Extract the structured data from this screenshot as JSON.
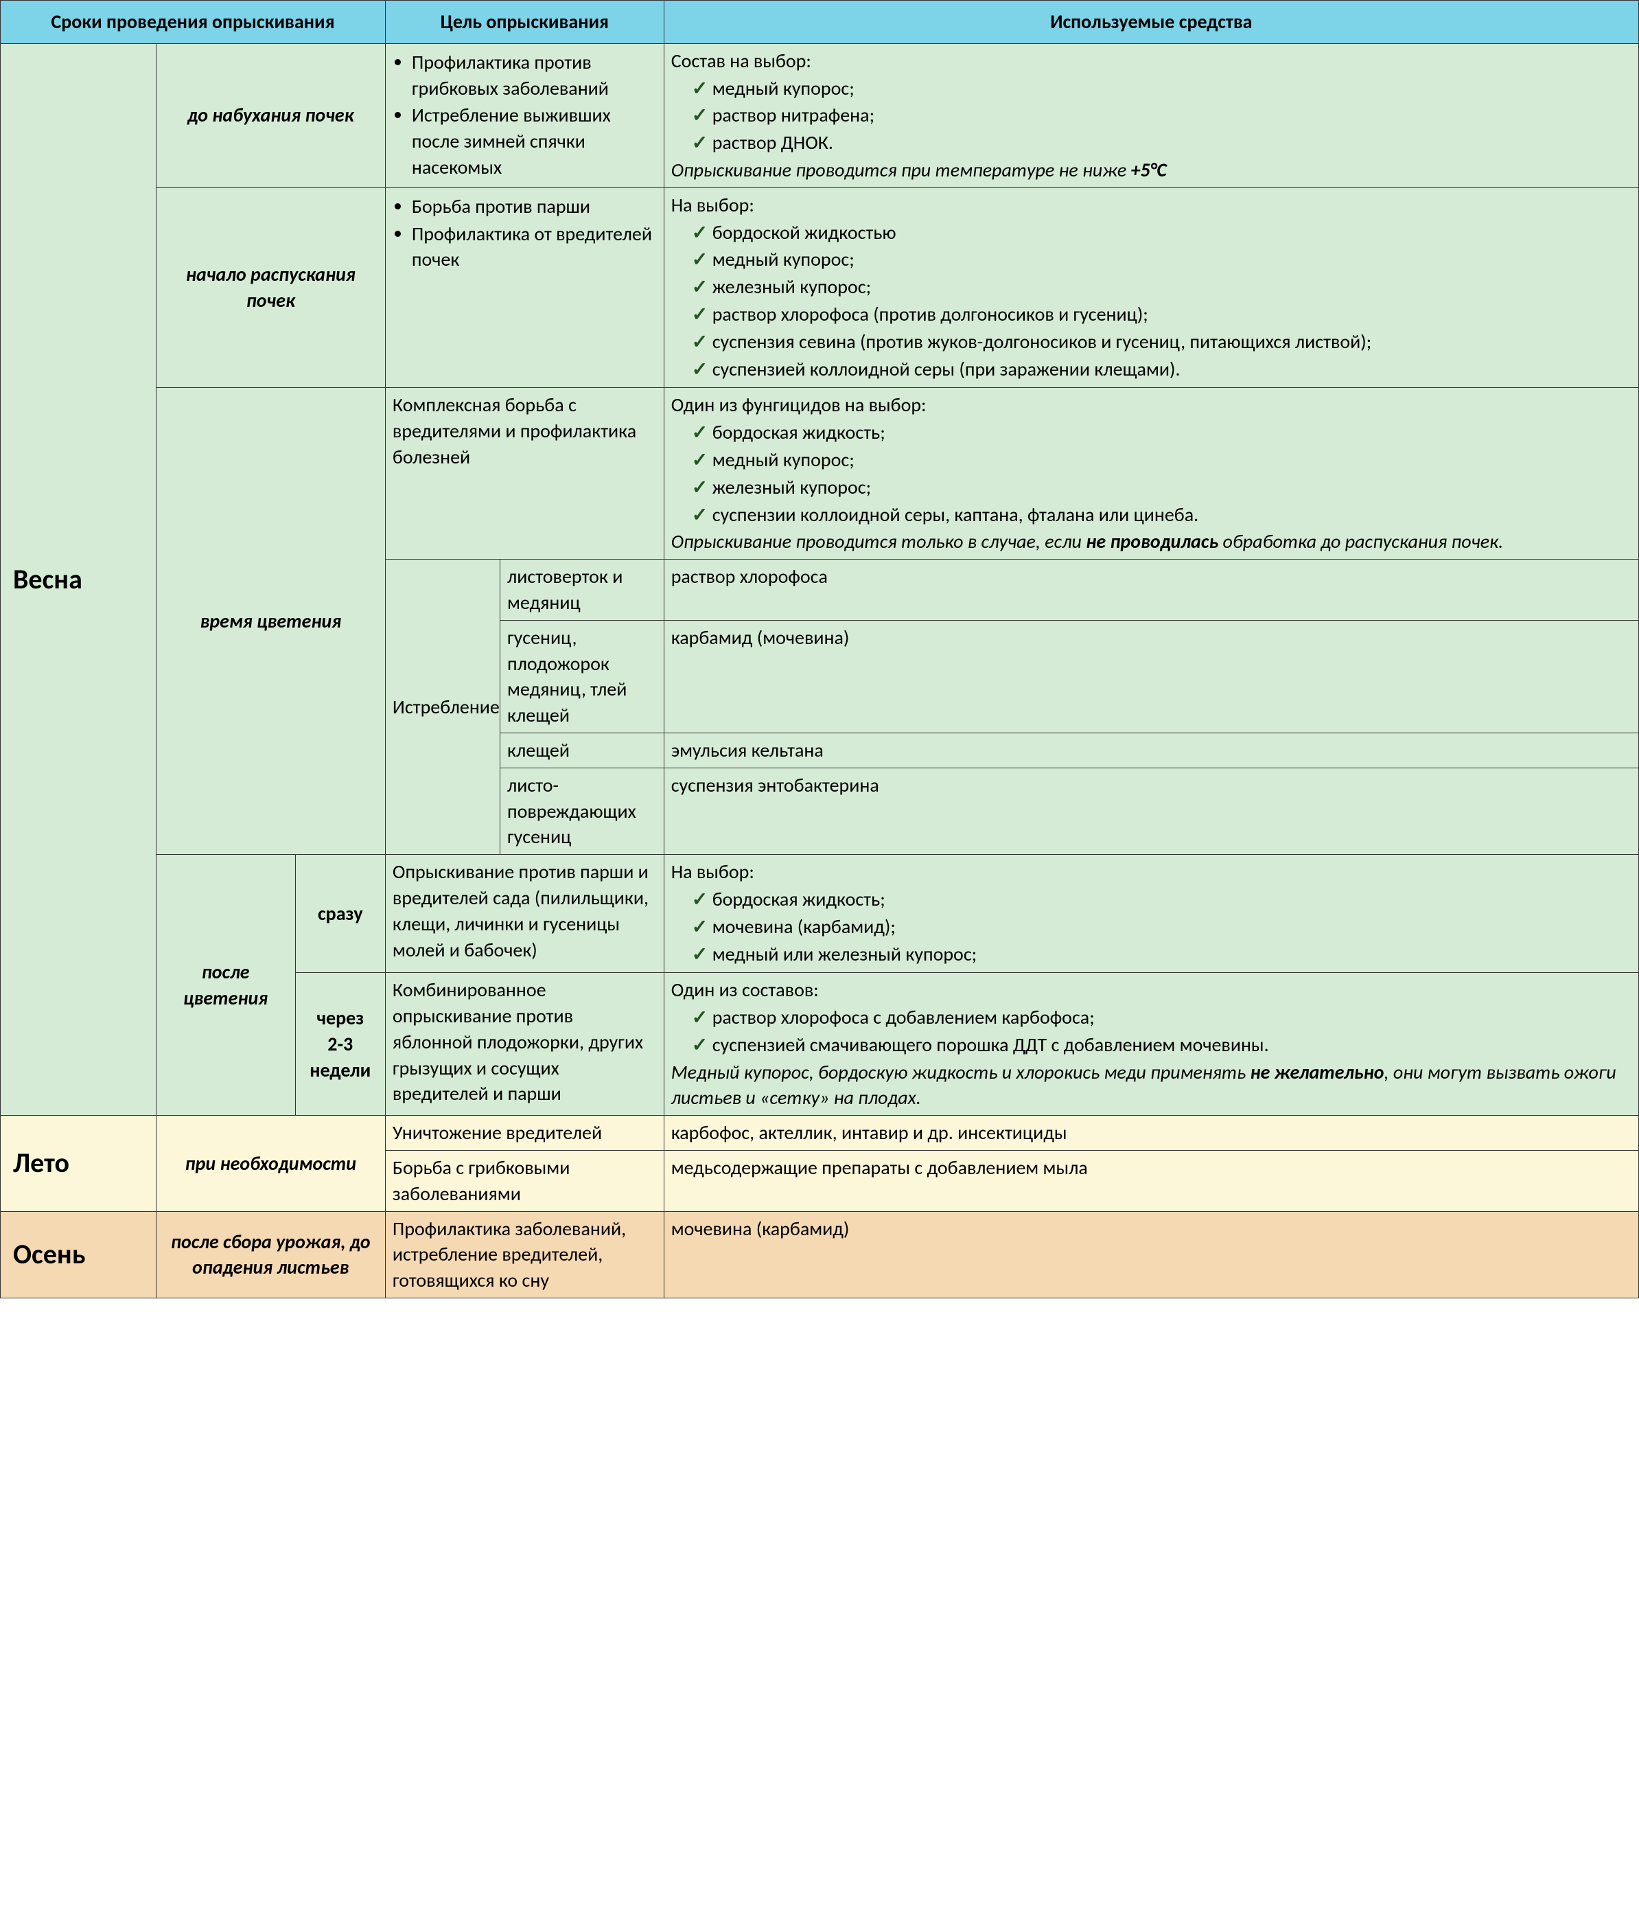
{
  "header": {
    "col_time": "Сроки проведения опрыскивания",
    "col_goal": "Цель опрыскивания",
    "col_means": "Используемые средства"
  },
  "seasons": {
    "vesna": "Весна",
    "leto": "Лето",
    "osen": "Осень"
  },
  "vesna": {
    "r1": {
      "phase": "до набухания почек",
      "goal_b1": "Профилактика против грибковых заболеваний",
      "goal_b2": "Истребление выживших после зимней спячки насекомых",
      "means_intro": "Состав на выбор:",
      "means_c1": "медный купорос;",
      "means_c2": "раствор нитрафена;",
      "means_c3": "раствор ДНОК.",
      "means_note_a": "Опрыскивание проводится при температуре не ниже ",
      "means_note_b": "+5°С"
    },
    "r2": {
      "phase": "начало распускания почек",
      "goal_b1": "Борьба против парши",
      "goal_b2": "Профилактика от вредителей почек",
      "means_intro": "На выбор:",
      "c1": "бордоской жидкостью",
      "c2": "медный купорос;",
      "c3": "железный купорос;",
      "c4": "раствор хлорофоса (против долгоносиков и гусениц);",
      "c5": "суспензия севина (против жуков-долгоносиков и гусениц, питающихся листвой);",
      "c6": "суспензией коллоидной серы (при заражении клещами)."
    },
    "r3": {
      "phase": "время цветения",
      "goal_a": "Комплексная борьба с вредителями и профилактика болезней",
      "means_intro": "Один из фунгицидов на выбор:",
      "c1": "бордоская жидкость;",
      "c2": "медный купорос;",
      "c3": "железный купорос;",
      "c4": "суспензии коллоидной серы, каптана, фталана или цинеба.",
      "note_a": "Опрыскивание проводится только в случае, если ",
      "note_b": "не проводилась",
      "note_c": " обработка до распускания почек.",
      "istreb_label": "Истребление",
      "sub1_t": "листоверток и медяниц",
      "sub1_m": "раствор хлорофоса",
      "sub2_t": "гусениц, плодожорок медяниц, тлей клещей",
      "sub2_m": "карбамид (мочевина)",
      "sub3_t": "клещей",
      "sub3_m": "эмульсия кельтана",
      "sub4_t": "листо-повреждающих гусениц",
      "sub4_m": "суспензия энтобактерина"
    },
    "r4": {
      "phase": "после цветения",
      "sub_a": "сразу",
      "sub_b_1": "через",
      "sub_b_2": "2-3",
      "sub_b_3": "недели",
      "goal_a": "Опрыскивание против парши и вредителей сада (пилильщики, клещи, личинки и гусеницы молей и бабочек)",
      "means_a_intro": "На выбор:",
      "a_c1": "бордоская жидкость;",
      "a_c2": "мочевина (карбамид);",
      "a_c3": "медный или железный купорос;",
      "goal_b": "Комбинированное опрыскивание против яблонной плодожорки, других грызущих и сосущих вредителей и парши",
      "means_b_intro": "Один из составов:",
      "b_c1": "раствор хлорофоса с добавлением карбофоса;",
      "b_c2": "суспензией смачивающего порошка ДДТ с добавлением мочевины.",
      "b_note_a": "Медный купорос, бордоскую жидкость и хлорокись меди применять ",
      "b_note_b": "не желательно",
      "b_note_c": ", они могут вызвать ожоги листьев и «сетку» на плодах."
    }
  },
  "leto": {
    "phase": "при необходимости",
    "g1": "Уничтожение вредителей",
    "m1": "карбофос, актеллик, интавир и др. инсектициды",
    "g2": "Борьба с грибковыми заболеваниями",
    "m2": "медьсодержащие препараты с добавлением мыла"
  },
  "osen": {
    "phase": "после сбора урожая, до опадения листьев",
    "g": "Профилактика заболеваний, истребление вредителей, готовящихся ко сну",
    "m": "мочевина (карбамид)"
  },
  "colors": {
    "header_bg": "#7dd3e8",
    "vesna_bg": "#d5ebd5",
    "leto_bg": "#fcf7d9",
    "osen_bg": "#f5d9b3",
    "border": "#333333"
  }
}
